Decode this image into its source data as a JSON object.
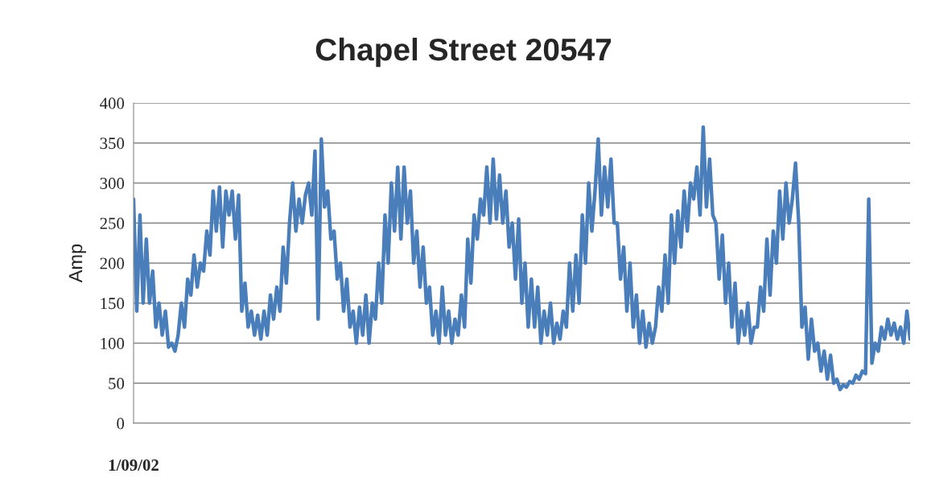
{
  "chart_data": {
    "type": "line",
    "title": "Chapel Street 20547",
    "ylabel": "Amp",
    "categories": [
      "1/09/02",
      null,
      null,
      null,
      null,
      null,
      null,
      null,
      null,
      null,
      null,
      null,
      null,
      null,
      null,
      null,
      null,
      null,
      null,
      null,
      null,
      null,
      null,
      null,
      null,
      null,
      null,
      null,
      null,
      null,
      null,
      null,
      null,
      null,
      null,
      null,
      null,
      null,
      null,
      null,
      null,
      null,
      null,
      null,
      null,
      null,
      null,
      null,
      null,
      null,
      null,
      null,
      null,
      null,
      null,
      null,
      null,
      null,
      null,
      null,
      null,
      null,
      null,
      null,
      null,
      null,
      null,
      null,
      null,
      null,
      null,
      null,
      null,
      null,
      null,
      null,
      null,
      null,
      null,
      null,
      null,
      null,
      null,
      null,
      null,
      null,
      null,
      null,
      null,
      null,
      null,
      null,
      null,
      null,
      null,
      null,
      null,
      null,
      null,
      null,
      null,
      null,
      null,
      null,
      null,
      null,
      null,
      null,
      null,
      null,
      null,
      null,
      null,
      null,
      null,
      null,
      null,
      null,
      null,
      null,
      null,
      null,
      null,
      null,
      null,
      null,
      null,
      null,
      null,
      null,
      null,
      null,
      null,
      null,
      null,
      null,
      null,
      null,
      null,
      null,
      null,
      null,
      null,
      null,
      null,
      null,
      null,
      null,
      null,
      null,
      null,
      null,
      null,
      null,
      null,
      null,
      null,
      null,
      null,
      null,
      null,
      null,
      null,
      null,
      null,
      null,
      null,
      null,
      null,
      null,
      null,
      null,
      null,
      null,
      null,
      null,
      null,
      null,
      null,
      null,
      null,
      null,
      null,
      null,
      null,
      null,
      null,
      null,
      null,
      null,
      null,
      null,
      null,
      null,
      null,
      null,
      null,
      null,
      null,
      null,
      null,
      null,
      null,
      null,
      null,
      null,
      null,
      null,
      null,
      null,
      null,
      null,
      null,
      null,
      null,
      null,
      null,
      null,
      null,
      null,
      null,
      null,
      null,
      null,
      null,
      null,
      null,
      null,
      null,
      null,
      null,
      null,
      null,
      null,
      null,
      null,
      null,
      null,
      null,
      null,
      null,
      null,
      null,
      null,
      null
    ],
    "series": [
      {
        "color": "#4a7ebb",
        "values": [
          280,
          140,
          260,
          150,
          230,
          150,
          190,
          120,
          150,
          110,
          140,
          95,
          100,
          90,
          110,
          150,
          120,
          180,
          160,
          210,
          170,
          200,
          190,
          240,
          210,
          290,
          240,
          295,
          220,
          290,
          260,
          290,
          230,
          285,
          140,
          175,
          120,
          140,
          110,
          135,
          105,
          140,
          110,
          160,
          130,
          170,
          140,
          220,
          175,
          250,
          300,
          240,
          280,
          250,
          285,
          300,
          260,
          340,
          130,
          355,
          270,
          290,
          230,
          240,
          180,
          200,
          140,
          180,
          120,
          140,
          100,
          145,
          110,
          160,
          100,
          150,
          130,
          200,
          150,
          260,
          200,
          300,
          240,
          320,
          230,
          320,
          250,
          290,
          200,
          240,
          170,
          220,
          150,
          170,
          110,
          140,
          100,
          170,
          110,
          140,
          100,
          130,
          110,
          160,
          120,
          230,
          175,
          260,
          230,
          280,
          260,
          320,
          250,
          330,
          255,
          310,
          250,
          290,
          220,
          250,
          180,
          255,
          150,
          200,
          120,
          180,
          120,
          170,
          100,
          140,
          110,
          150,
          100,
          125,
          105,
          140,
          120,
          200,
          140,
          210,
          150,
          260,
          200,
          300,
          240,
          290,
          355,
          260,
          320,
          270,
          330,
          250,
          250,
          180,
          220,
          140,
          200,
          120,
          160,
          100,
          140,
          95,
          125,
          100,
          120,
          170,
          140,
          210,
          150,
          260,
          200,
          265,
          220,
          290,
          240,
          300,
          280,
          320,
          260,
          370,
          270,
          330,
          260,
          250,
          180,
          235,
          150,
          200,
          120,
          175,
          100,
          140,
          110,
          150,
          100,
          120,
          120,
          170,
          140,
          230,
          160,
          240,
          200,
          290,
          230,
          300,
          250,
          280,
          325,
          250,
          120,
          145,
          80,
          130,
          90,
          100,
          65,
          90,
          55,
          85,
          50,
          55,
          42,
          48,
          45,
          52,
          50,
          60,
          55,
          65,
          62,
          280,
          75,
          100,
          90,
          120,
          105,
          130,
          110,
          125,
          105,
          120,
          100,
          140,
          105
        ]
      }
    ],
    "ylim": [
      0,
      400
    ],
    "yticks": [
      0,
      50,
      100,
      150,
      200,
      250,
      300,
      350,
      400
    ],
    "grid": "y",
    "legend": false
  }
}
